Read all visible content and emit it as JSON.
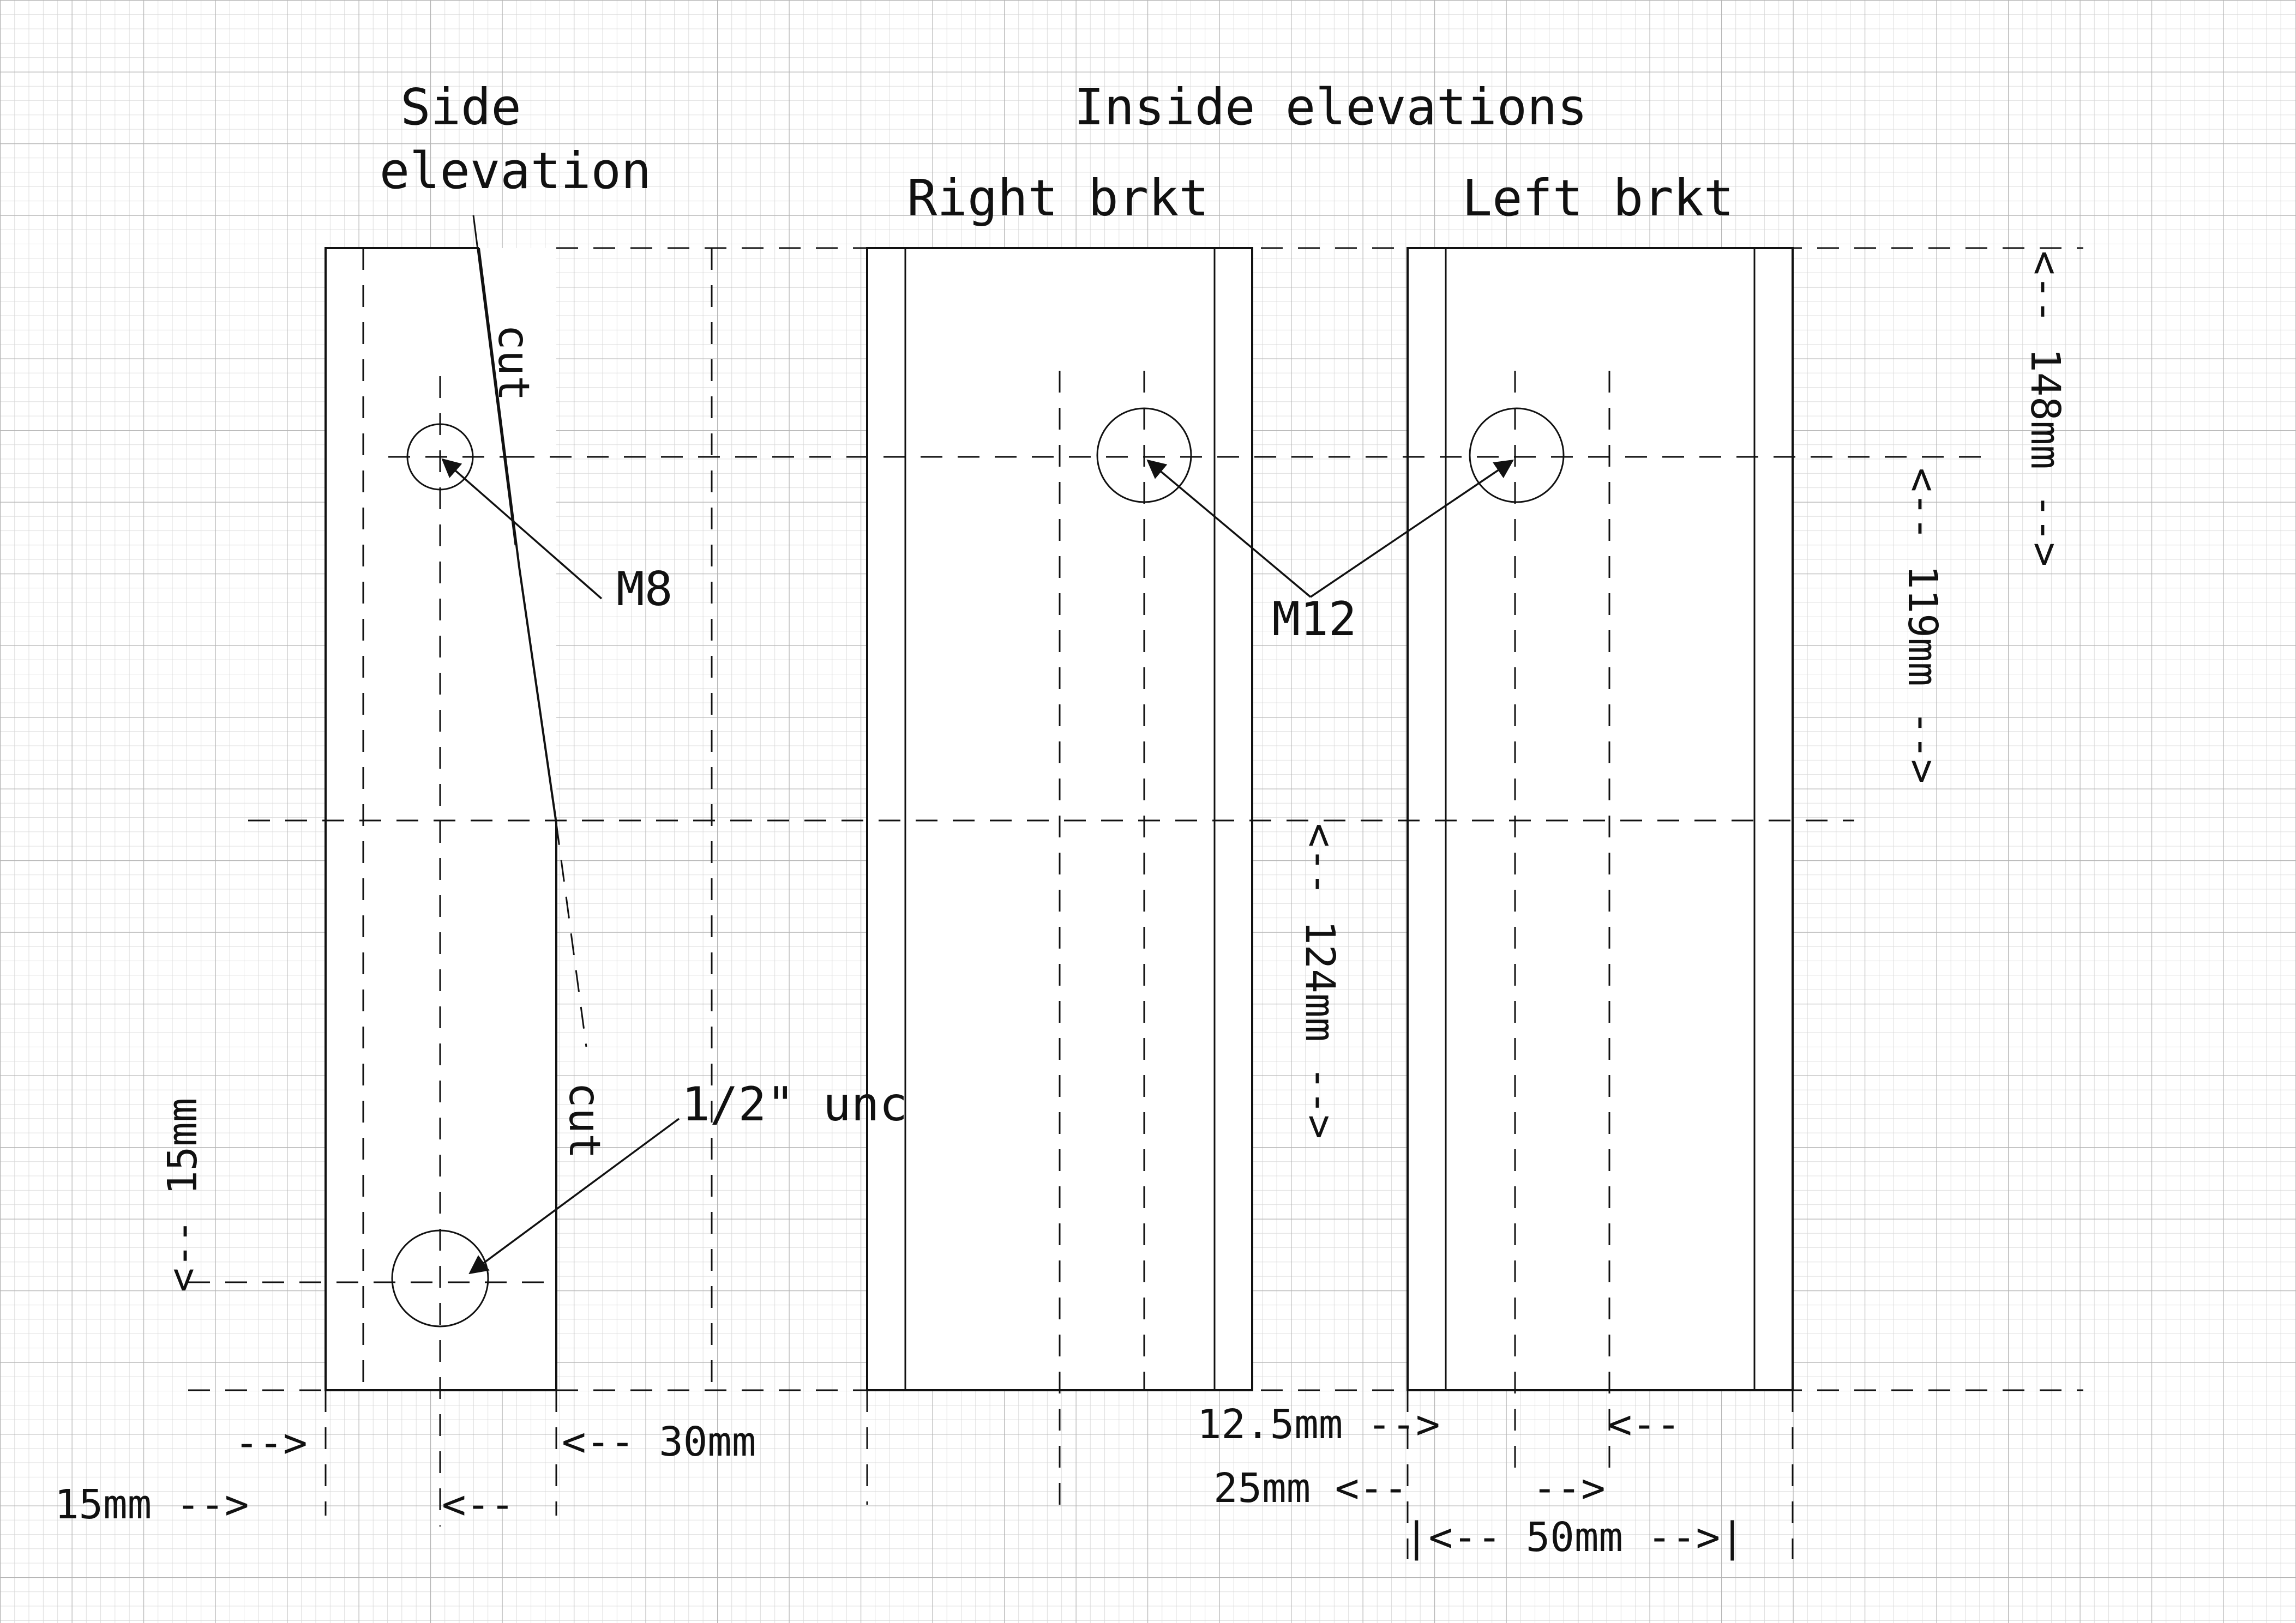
{
  "titles": {
    "side": "Side elevation",
    "side_line1": "Side",
    "side_line2": "elevation",
    "inside": "Inside elevations",
    "right": "Right brkt",
    "left": "Left brkt"
  },
  "callouts": {
    "m8": "M8",
    "m12": "M12",
    "unc": "1/2\" unc",
    "cut": "cut"
  },
  "dimensions": {
    "d30": "<-- 30mm",
    "d15_arrow": "-->",
    "d15": "15mm -->",
    "d15_back": "<--",
    "d15_vertical": "<-- 15mm",
    "d124": "<-- 124mm -->",
    "d119": "<-- 119mm -->",
    "d148": "<-- 148mm -->",
    "d125": "12.5mm -->",
    "d125_back": "<--",
    "d25": "25mm <--",
    "d25_fwd": "-->",
    "d50": "|<-- 50mm -->|"
  },
  "colors": {
    "ink": "#111111",
    "paper": "#ffffff",
    "grid_minor": "#d6d6d6",
    "grid_major": "#b4b4b4"
  }
}
